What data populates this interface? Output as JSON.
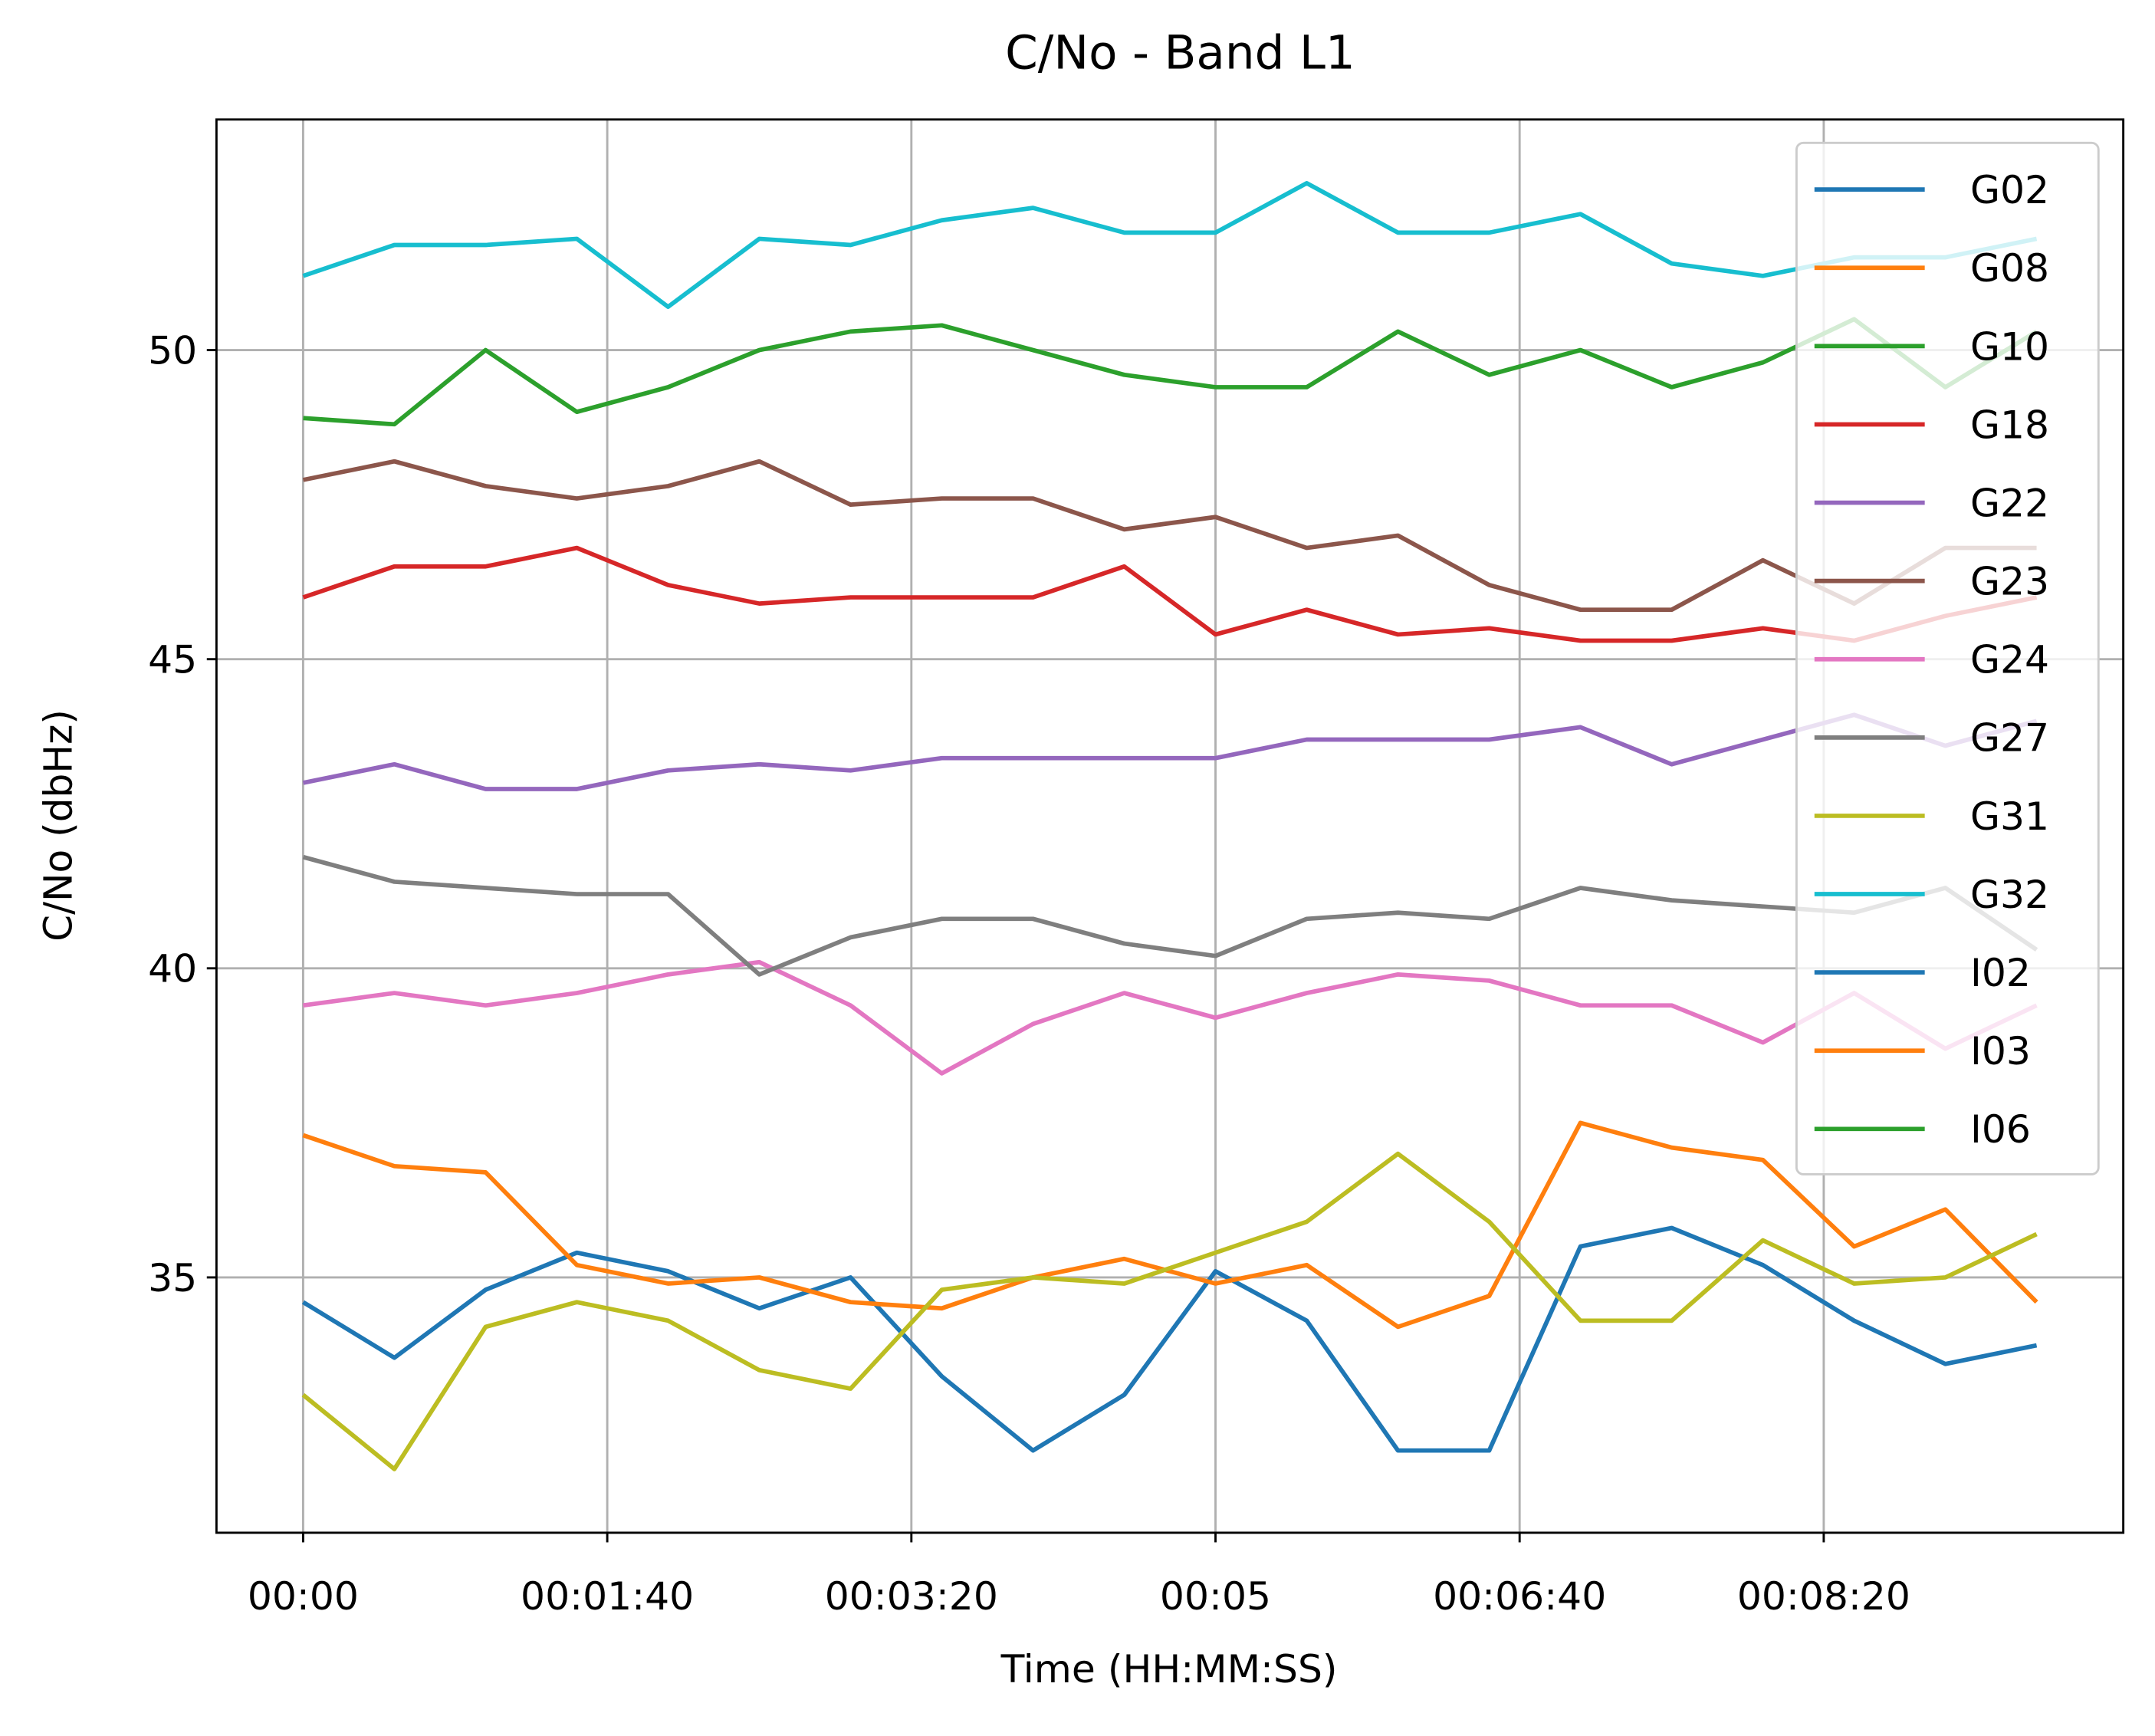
{
  "chart_data": {
    "type": "line",
    "title": "C/No - Band L1",
    "xlabel": "Time (HH:MM:SS)",
    "ylabel": "C/No (dbHz)",
    "x": [
      0,
      30,
      60,
      90,
      120,
      150,
      180,
      210,
      240,
      270,
      300,
      330,
      360,
      390,
      420,
      450,
      480,
      510,
      540,
      570
    ],
    "xlim": [
      -28.5,
      598.5
    ],
    "xticks": [
      {
        "value": 0,
        "label": "00:00"
      },
      {
        "value": 100,
        "label": "00:01:40"
      },
      {
        "value": 200,
        "label": "00:03:20"
      },
      {
        "value": 300,
        "label": "00:05"
      },
      {
        "value": 400,
        "label": "00:06:40"
      },
      {
        "value": 500,
        "label": "00:08:20"
      }
    ],
    "ylim": [
      30.87,
      53.73
    ],
    "yticks": [
      35,
      40,
      45,
      50
    ],
    "grid": true,
    "legend": "upper right",
    "series": [
      {
        "name": "G02",
        "color": "#1f77b4",
        "values": [
          34.6,
          33.7,
          34.8,
          35.4,
          35.1,
          34.5,
          35.0,
          33.4,
          32.2,
          33.1,
          35.1,
          34.3,
          32.2,
          32.2,
          35.5,
          35.8,
          35.2,
          34.3,
          33.6,
          33.9
        ]
      },
      {
        "name": "G08",
        "color": "#ff7f0e",
        "values": [
          37.3,
          36.8,
          36.7,
          35.2,
          34.9,
          35.0,
          34.6,
          34.5,
          35.0,
          35.3,
          34.9,
          35.2,
          34.2,
          34.7,
          37.5,
          37.1,
          36.9,
          35.5,
          36.1,
          34.6
        ]
      },
      {
        "name": "G10",
        "color": "#2ca02c",
        "values": [
          48.9,
          48.8,
          50.0,
          49.0,
          49.4,
          50.0,
          50.3,
          50.4,
          50.0,
          49.6,
          49.4,
          49.4,
          50.3,
          49.6,
          50.0,
          49.4,
          49.8,
          50.5,
          49.4,
          50.3
        ]
      },
      {
        "name": "G18",
        "color": "#d62728",
        "values": [
          46.0,
          46.5,
          46.5,
          46.8,
          46.2,
          45.9,
          46.0,
          46.0,
          46.0,
          46.5,
          45.4,
          45.8,
          45.4,
          45.5,
          45.3,
          45.3,
          45.5,
          45.3,
          45.7,
          46.0
        ]
      },
      {
        "name": "G22",
        "color": "#9467bd",
        "values": [
          43.0,
          43.3,
          42.9,
          42.9,
          43.2,
          43.3,
          43.2,
          43.4,
          43.4,
          43.4,
          43.4,
          43.7,
          43.7,
          43.7,
          43.9,
          43.3,
          43.7,
          44.1,
          43.6,
          44.0
        ]
      },
      {
        "name": "G23",
        "color": "#8c564b",
        "values": [
          47.9,
          48.2,
          47.8,
          47.6,
          47.8,
          48.2,
          47.5,
          47.6,
          47.6,
          47.1,
          47.3,
          46.8,
          47.0,
          46.2,
          45.8,
          45.8,
          46.6,
          45.9,
          46.8,
          46.8
        ]
      },
      {
        "name": "G24",
        "color": "#e377c2",
        "values": [
          39.4,
          39.6,
          39.4,
          39.6,
          39.9,
          40.1,
          39.4,
          38.3,
          39.1,
          39.6,
          39.2,
          39.6,
          39.9,
          39.8,
          39.4,
          39.4,
          38.8,
          39.6,
          38.7,
          39.4
        ]
      },
      {
        "name": "G27",
        "color": "#7f7f7f",
        "values": [
          41.8,
          41.4,
          41.3,
          41.2,
          41.2,
          39.9,
          40.5,
          40.8,
          40.8,
          40.4,
          40.2,
          40.8,
          40.9,
          40.8,
          41.3,
          41.1,
          41.0,
          40.9,
          41.3,
          40.3
        ]
      },
      {
        "name": "G31",
        "color": "#bcbd22",
        "values": [
          33.1,
          31.9,
          34.2,
          34.6,
          34.3,
          33.5,
          33.2,
          34.8,
          35.0,
          34.9,
          35.4,
          35.9,
          37.0,
          35.9,
          34.3,
          34.3,
          35.6,
          34.9,
          35.0,
          35.7
        ]
      },
      {
        "name": "G32",
        "color": "#17becf",
        "values": [
          51.2,
          51.7,
          51.7,
          51.8,
          50.7,
          51.8,
          51.7,
          52.1,
          52.3,
          51.9,
          51.9,
          52.7,
          51.9,
          51.9,
          52.2,
          51.4,
          51.2,
          51.5,
          51.5,
          51.8
        ]
      },
      {
        "name": "I02",
        "color": "#1f77b4",
        "values": [
          null,
          null,
          null,
          null,
          null,
          null,
          null,
          null,
          null,
          null,
          null,
          null,
          null,
          null,
          null,
          null,
          null,
          null,
          null,
          null
        ]
      },
      {
        "name": "I03",
        "color": "#ff7f0e",
        "values": [
          null,
          null,
          null,
          null,
          null,
          null,
          null,
          null,
          null,
          null,
          null,
          null,
          null,
          null,
          null,
          null,
          null,
          null,
          null,
          null
        ]
      },
      {
        "name": "I06",
        "color": "#2ca02c",
        "values": [
          null,
          null,
          null,
          null,
          null,
          null,
          null,
          null,
          null,
          null,
          null,
          null,
          null,
          null,
          null,
          null,
          null,
          null,
          null,
          null
        ]
      }
    ]
  }
}
